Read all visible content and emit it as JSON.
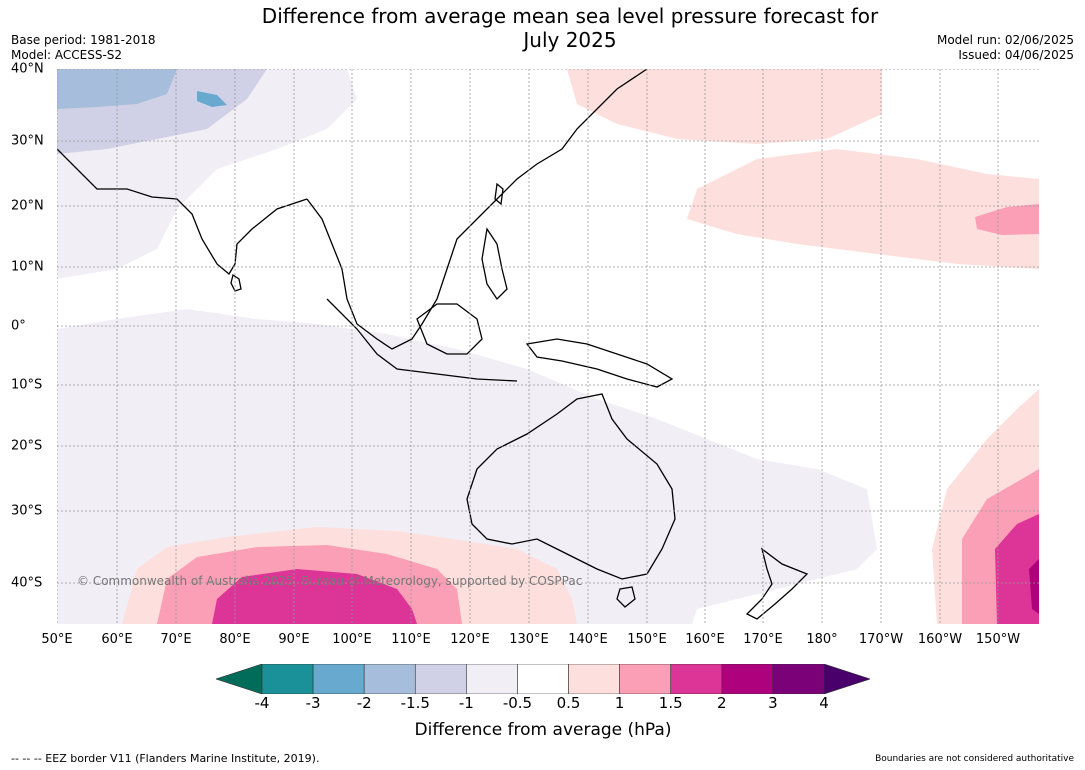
{
  "title": "Difference from average mean sea level pressure forecast for",
  "subtitle": "July 2025",
  "base_period": "Base period: 1981-2018",
  "model": "Model: ACCESS-S2",
  "model_run": "Model run: 02/06/2025",
  "issued": "Issued: 04/06/2025",
  "copyright": "© Commonwealth of Australia 2025, Bureau of Meteorology, supported by COSPPac",
  "lat_labels": [
    "40°N",
    "30°N",
    "20°N",
    "10°N",
    "0°",
    "10°S",
    "20°S",
    "30°S",
    "40°S"
  ],
  "lon_labels": [
    "50°E",
    "60°E",
    "70°E",
    "80°E",
    "90°E",
    "100°E",
    "110°E",
    "120°E",
    "130°E",
    "140°E",
    "150°E",
    "160°E",
    "170°E",
    "180°",
    "170°W",
    "160°W",
    "150°W"
  ],
  "colorbar": {
    "ticks": [
      "-4",
      "-3",
      "-2",
      "-1.5",
      "-1",
      "-0.5",
      "0.5",
      "1",
      "1.5",
      "2",
      "3",
      "4"
    ],
    "colors": [
      "#1a9099",
      "#67a9cf",
      "#a6bddb",
      "#d0d1e6",
      "#f1eef6",
      "#ffffff",
      "#fde0dd",
      "#fa9fb5",
      "#dd3497",
      "#ae017e",
      "#7a0177"
    ],
    "under_color": "#016c59",
    "over_color": "#49006a",
    "label": "Difference from average (hPa)"
  },
  "footer_left": "-- -- -- EEZ border V11 (Flanders Marine Institute, 2019).",
  "footer_right": "Boundaries are not considered authoritative"
}
